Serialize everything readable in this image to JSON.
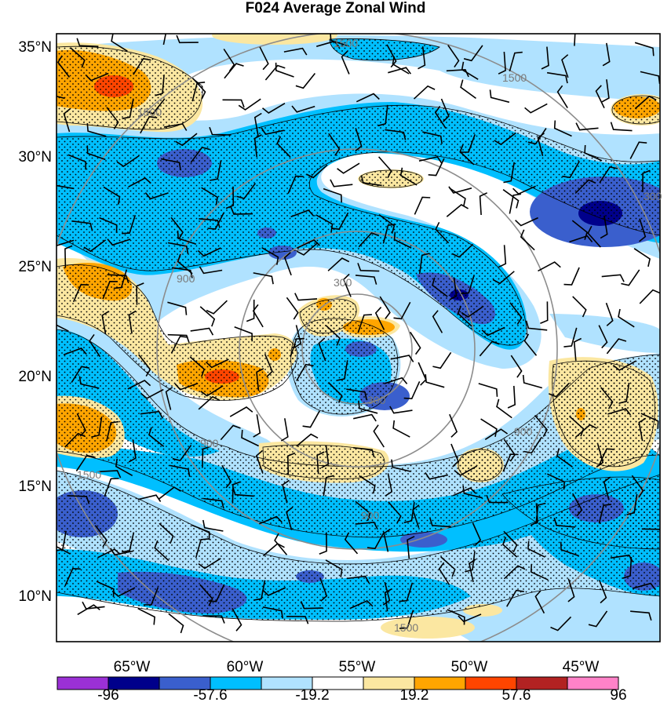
{
  "title": "F024 Average Zonal Wind",
  "lat_labels": [
    "35°N",
    "30°N",
    "25°N",
    "20°N",
    "15°N",
    "10°N"
  ],
  "lon_labels": [
    "65°W",
    "60°W",
    "55°W",
    "50°W",
    "45°W"
  ],
  "ring_labels": [
    "1500",
    "1500",
    "1500",
    "1500",
    "1500",
    "900",
    "900",
    "900",
    "900",
    "300",
    "300",
    "300"
  ],
  "colorbar": {
    "colors": [
      "#9b30d6",
      "#00008b",
      "#3a5fcd",
      "#00bfff",
      "#b0e2ff",
      "#ffffff",
      "#fbe7a1",
      "#ffa500",
      "#ff4500",
      "#b22222",
      "#ff82c8"
    ],
    "labels": [
      "-96",
      "-57.6",
      "-19.2",
      "19.2",
      "57.6",
      "96"
    ]
  }
}
